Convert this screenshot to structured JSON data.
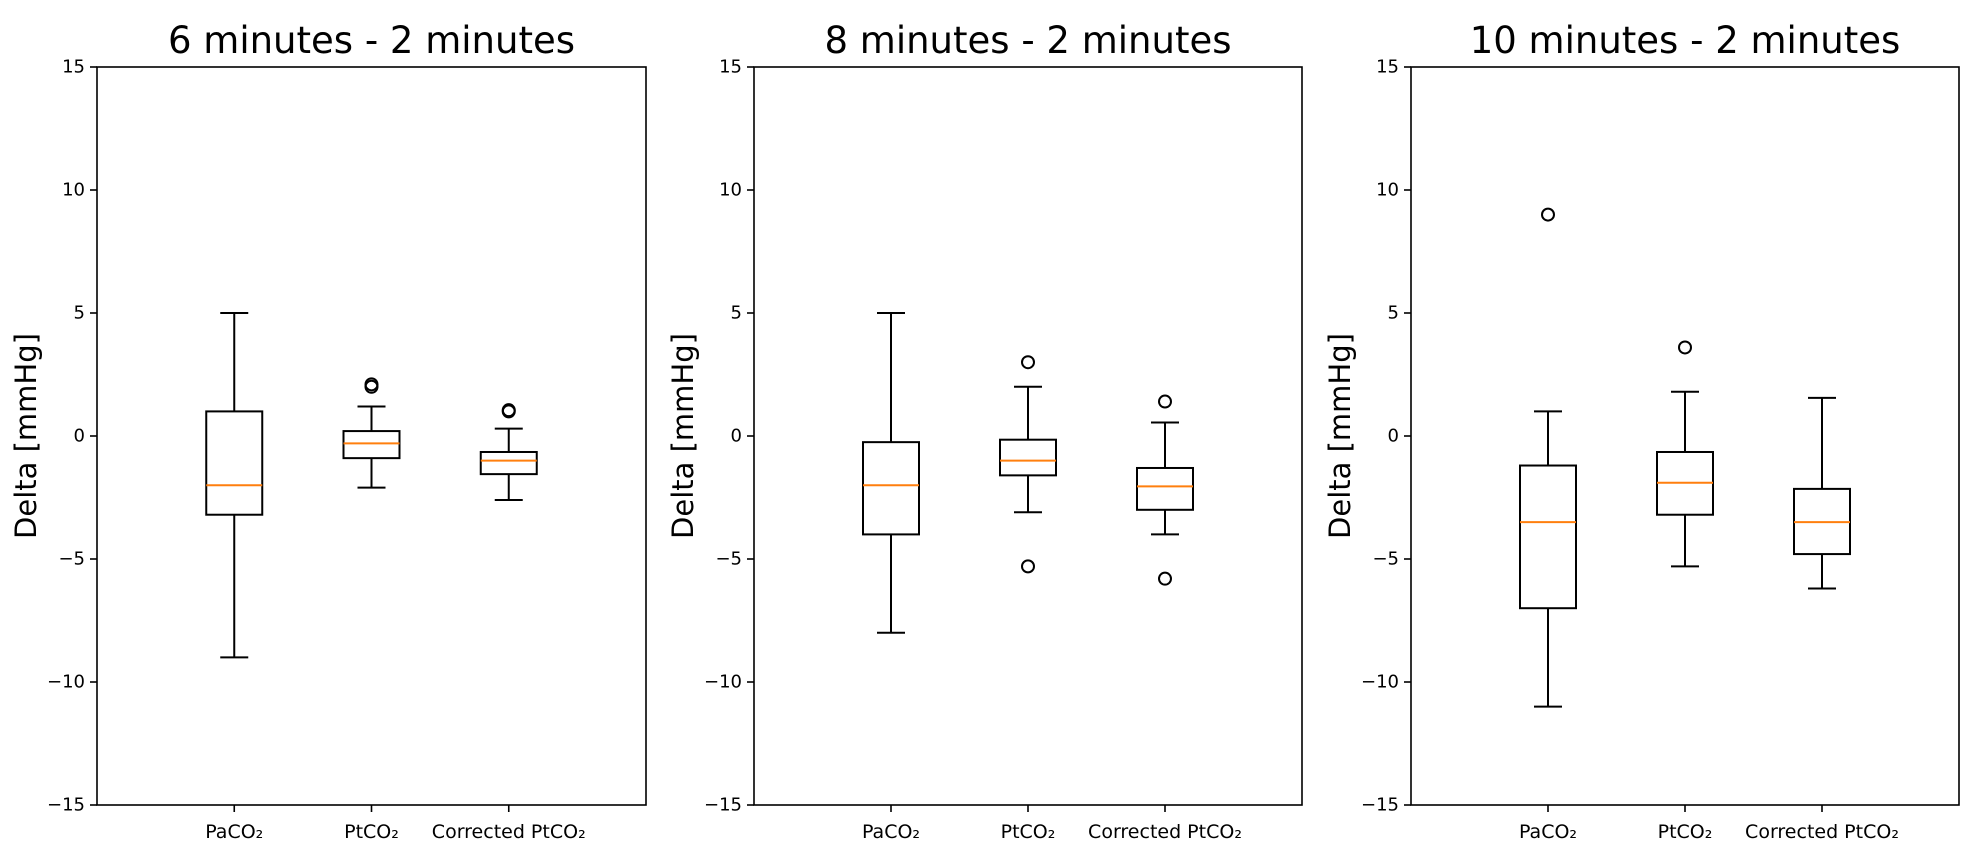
{
  "chart_data": [
    {
      "type": "boxplot",
      "title": "6 minutes - 2 minutes",
      "ylabel": "Delta [mmHg]",
      "xlabel": "",
      "ylim": [
        -15,
        15
      ],
      "yticks": [
        -15,
        -10,
        -5,
        0,
        5,
        10,
        15
      ],
      "ytick_labels": [
        "−15",
        "−10",
        "−5",
        "0",
        "5",
        "10",
        "15"
      ],
      "categories": [
        "PaCO₂",
        "PtCO₂",
        "Corrected PtCO₂"
      ],
      "boxes": [
        {
          "whisker_low": -9,
          "q1": -3.2,
          "median": -2,
          "q3": 1,
          "whisker_high": 5,
          "fliers": []
        },
        {
          "whisker_low": -2.1,
          "q1": -0.9,
          "median": -0.3,
          "q3": 0.2,
          "whisker_high": 1.2,
          "fliers": [
            2.0,
            2.1
          ]
        },
        {
          "whisker_low": -2.6,
          "q1": -1.55,
          "median": -1.0,
          "q3": -0.65,
          "whisker_high": 0.3,
          "fliers": [
            1.0,
            1.05
          ]
        }
      ]
    },
    {
      "type": "boxplot",
      "title": "8 minutes - 2 minutes",
      "ylabel": "Delta [mmHg]",
      "xlabel": "",
      "ylim": [
        -15,
        15
      ],
      "yticks": [
        -15,
        -10,
        -5,
        0,
        5,
        10,
        15
      ],
      "ytick_labels": [
        "−15",
        "−10",
        "−5",
        "0",
        "5",
        "10",
        "15"
      ],
      "categories": [
        "PaCO₂",
        "PtCO₂",
        "Corrected PtCO₂"
      ],
      "boxes": [
        {
          "whisker_low": -8,
          "q1": -4,
          "median": -2,
          "q3": -0.25,
          "whisker_high": 5,
          "fliers": []
        },
        {
          "whisker_low": -3.1,
          "q1": -1.6,
          "median": -1.0,
          "q3": -0.15,
          "whisker_high": 2.0,
          "fliers": [
            3.0,
            -5.3
          ]
        },
        {
          "whisker_low": -4.0,
          "q1": -3.0,
          "median": -2.05,
          "q3": -1.3,
          "whisker_high": 0.55,
          "fliers": [
            1.4,
            -5.8
          ]
        }
      ]
    },
    {
      "type": "boxplot",
      "title": "10 minutes - 2 minutes",
      "ylabel": "Delta [mmHg]",
      "xlabel": "",
      "ylim": [
        -15,
        15
      ],
      "yticks": [
        -15,
        -10,
        -5,
        0,
        5,
        10,
        15
      ],
      "ytick_labels": [
        "−15",
        "−10",
        "−5",
        "0",
        "5",
        "10",
        "15"
      ],
      "categories": [
        "PaCO₂",
        "PtCO₂",
        "Corrected PtCO₂"
      ],
      "boxes": [
        {
          "whisker_low": -11,
          "q1": -7,
          "median": -3.5,
          "q3": -1.2,
          "whisker_high": 1.0,
          "fliers": [
            9.0
          ]
        },
        {
          "whisker_low": -5.3,
          "q1": -3.2,
          "median": -1.9,
          "q3": -0.65,
          "whisker_high": 1.8,
          "fliers": [
            3.6
          ]
        },
        {
          "whisker_low": -6.2,
          "q1": -4.8,
          "median": -3.5,
          "q3": -2.15,
          "whisker_high": 1.55,
          "fliers": []
        }
      ]
    }
  ]
}
